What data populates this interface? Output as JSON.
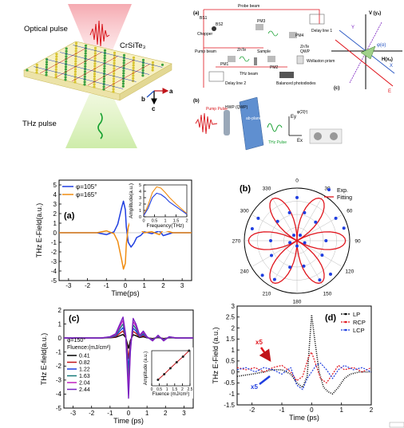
{
  "top_left": {
    "optical_label": "Optical pulse",
    "crystal_label": "CrSiTe₃",
    "thz_label": "THz pulse",
    "axis_b": "b",
    "axis_a": "a",
    "axis_c": "c"
  },
  "top_right": {
    "panel_a": "(a)",
    "panel_b": "(b)",
    "panel_c": "(c)",
    "bs1": "BS1",
    "bs2": "BS2",
    "probe_beam": "Probe beam",
    "delay_line_1": "Delay line 1",
    "delay_line_2": "Delay line 2",
    "chopper": "Chopper",
    "pump_beam": "Pump beam",
    "pm1": "PM1",
    "pm2": "PM2",
    "pm3": "PM3",
    "pm4": "PM4",
    "znte1": "ZnTe",
    "znte2": "ZnTe",
    "thz_beam": "THz beam",
    "sample": "Sample",
    "qwp": "QWP",
    "wollaston": "Wollaston prism",
    "balanced": "Balanced photodiodes",
    "sub_b_lens": "HWP (QWP)",
    "sub_b_plane": "ab-plane Surface",
    "sub_b_pump": "Pump Pulse",
    "sub_b_thz": "THz Pulse",
    "ey": "Ey",
    "ex": "Ex",
    "phi_label": "φ(2ξ²)",
    "c_v": "V (yₐ)",
    "c_h": "H(xₐ)",
    "c_y": "Y",
    "c_x": "X",
    "c_e": "E",
    "c_phi": "φ(α)"
  },
  "chart_data": [
    {
      "type": "line",
      "panel": "(a)",
      "ylabel": "THz E-Field(a.u.)",
      "xlabel": "Time(ps)",
      "xlim": [
        -3.5,
        3.5
      ],
      "ylim": [
        -5,
        5.5
      ],
      "xticks": [
        -3,
        -2,
        -1,
        0,
        1,
        2,
        3
      ],
      "yticks": [
        -5,
        -4,
        -3,
        -2,
        -1,
        0,
        1,
        2,
        3,
        4,
        5
      ],
      "series": [
        {
          "name": "φ=105°",
          "color": "#1f3ee0",
          "x": [
            -3.5,
            -1.5,
            -1.0,
            -0.6,
            -0.4,
            -0.2,
            -0.1,
            0.0,
            0.05,
            0.15,
            0.3,
            0.45,
            0.6,
            0.8,
            1.0,
            1.4,
            1.8,
            2.0,
            2.5,
            3.5
          ],
          "y": [
            0.0,
            0.0,
            -0.2,
            0.1,
            0.9,
            2.6,
            3.3,
            2.4,
            0.6,
            -1.0,
            -1.5,
            -1.1,
            -0.5,
            -0.3,
            0.1,
            -0.1,
            0.2,
            -0.3,
            0.0,
            0.0
          ]
        },
        {
          "name": "φ=165°",
          "color": "#f08c10",
          "x": [
            -3.5,
            -1.5,
            -1.0,
            -0.6,
            -0.4,
            -0.2,
            -0.1,
            0.0,
            0.05,
            0.15,
            0.3,
            0.45,
            0.6,
            0.8,
            1.0,
            1.4,
            1.8,
            2.0,
            2.5,
            3.5
          ],
          "y": [
            0.0,
            0.0,
            0.2,
            -0.1,
            -0.9,
            -2.8,
            -3.8,
            -3.2,
            -1.2,
            0.6,
            1.4,
            1.2,
            0.6,
            0.3,
            0.0,
            0.1,
            -0.2,
            0.3,
            0.0,
            0.0
          ]
        }
      ],
      "inset": {
        "ylabel": "Amplitude(a.u.)",
        "xlabel": "Frequency(THz)",
        "xlim": [
          0.0,
          2.0
        ],
        "ylim": [
          0,
          5
        ],
        "xticks": [
          0.0,
          0.5,
          1.0,
          1.5,
          2.0
        ],
        "yticks": [
          0,
          1,
          2,
          3,
          4,
          5
        ],
        "series": [
          {
            "color": "#f08c10",
            "x": [
              0.0,
              0.2,
              0.4,
              0.6,
              0.8,
              1.0,
              1.2,
              1.5,
              2.0
            ],
            "y": [
              0.2,
              1.8,
              3.8,
              4.7,
              4.5,
              3.8,
              3.0,
              2.0,
              0.5
            ]
          },
          {
            "color": "#1f3ee0",
            "x": [
              0.0,
              0.2,
              0.4,
              0.6,
              0.8,
              1.0,
              1.2,
              1.5,
              2.0
            ],
            "y": [
              0.2,
              1.3,
              3.0,
              3.7,
              3.5,
              3.0,
              2.3,
              1.6,
              0.4
            ]
          }
        ]
      }
    },
    {
      "type": "scatter",
      "subtype": "polar",
      "panel": "(b)",
      "angle_ticks": [
        0,
        30,
        60,
        90,
        120,
        150,
        180,
        210,
        240,
        270,
        300,
        330
      ],
      "legend": [
        "Exp.",
        "Fitting"
      ],
      "exp_color": "#1f3ee0",
      "fit_color": "#e0151d",
      "exp_angles": [
        0,
        15,
        30,
        45,
        60,
        75,
        90,
        105,
        120,
        135,
        150,
        165,
        180,
        195,
        210,
        225,
        240,
        255,
        270,
        285,
        300,
        315,
        330,
        345
      ],
      "exp_r": [
        0.82,
        0.55,
        0.12,
        0.5,
        0.85,
        0.92,
        0.55,
        0.15,
        0.55,
        0.9,
        0.86,
        0.5,
        0.1,
        0.52,
        0.85,
        0.93,
        0.56,
        0.14,
        0.5,
        0.88,
        0.85,
        0.52,
        0.12,
        0.55
      ]
    },
    {
      "type": "line",
      "panel": "(c)",
      "ylabel": "THz E-field(a.u.)",
      "xlabel": "Time (ps)",
      "xlim": [
        -3.5,
        3.5
      ],
      "ylim": [
        -5,
        2
      ],
      "xticks": [
        -3,
        -2,
        -1,
        0,
        1,
        2,
        3
      ],
      "yticks": [
        -5,
        -4,
        -3,
        -2,
        -1,
        0,
        1,
        2
      ],
      "phi_note": "φ=150°",
      "legend_title": "Fluence:(mJ/cm²)",
      "series": [
        {
          "name": "0.41",
          "color": "#000000",
          "scale": 0.17
        },
        {
          "name": "0.82",
          "color": "#c0141a",
          "scale": 0.34
        },
        {
          "name": "1.22",
          "color": "#1f3ee0",
          "scale": 0.5
        },
        {
          "name": "1.63",
          "color": "#167a7a",
          "scale": 0.67
        },
        {
          "name": "2.04",
          "color": "#c020c0",
          "scale": 0.84
        },
        {
          "name": "2.44",
          "color": "#7a20c0",
          "scale": 1.0
        }
      ],
      "base_x": [
        -3.5,
        -1.5,
        -1.0,
        -0.7,
        -0.5,
        -0.3,
        -0.15,
        0.0,
        0.1,
        0.25,
        0.4,
        0.6,
        0.8,
        1.0,
        1.3,
        1.6,
        1.9,
        2.2,
        2.6,
        3.5
      ],
      "base_y": [
        0.0,
        0.0,
        0.1,
        0.3,
        0.9,
        1.5,
        0.2,
        -4.3,
        -1.0,
        1.4,
        1.0,
        0.2,
        0.5,
        0.1,
        -0.2,
        0.2,
        -0.2,
        0.1,
        0.0,
        0.0
      ],
      "inset": {
        "ylabel": "Amplitude (a.u.)",
        "xlabel": "Fluence (mJ/cm²)",
        "xlim": [
          0.0,
          2.5
        ],
        "ylim": [
          0,
          1
        ],
        "xticks": [
          0.0,
          0.5,
          1.0,
          1.5,
          2.0,
          2.5
        ],
        "x": [
          0.41,
          0.82,
          1.22,
          1.63,
          2.04,
          2.44
        ],
        "y": [
          0.17,
          0.33,
          0.5,
          0.67,
          0.83,
          1.0
        ]
      }
    },
    {
      "type": "line",
      "panel": "(d)",
      "ylabel": "THz E-Field (a.u.)",
      "xlabel": "Time (ps)",
      "xlim": [
        -2.5,
        2
      ],
      "ylim": [
        -1.5,
        3.0
      ],
      "xticks": [
        -2,
        -1,
        0,
        1,
        2
      ],
      "yticks": [
        -1.5,
        -1.0,
        -0.5,
        0.0,
        0.5,
        1.0,
        1.5,
        2.0,
        2.5,
        3.0
      ],
      "annotation_1": "x5",
      "annotation_2": "x5",
      "series": [
        {
          "name": "LP",
          "color": "#000000"
        },
        {
          "name": "RCP",
          "color": "#e0151d"
        },
        {
          "name": "LCP",
          "color": "#1f3ee0"
        }
      ],
      "lp_x": [
        -2.5,
        -2.0,
        -1.6,
        -1.3,
        -1.0,
        -0.7,
        -0.5,
        -0.3,
        -0.15,
        0.0,
        0.1,
        0.25,
        0.4,
        0.55,
        0.7,
        0.9,
        1.1,
        1.3,
        1.6,
        2.0
      ],
      "lp_y": [
        -0.2,
        -0.1,
        0.0,
        0.1,
        0.1,
        -0.1,
        -0.5,
        -0.7,
        -0.2,
        2.6,
        1.5,
        0.0,
        -0.7,
        -0.9,
        -1.0,
        -0.7,
        -0.3,
        -0.1,
        0.0,
        0.0
      ],
      "rcp_x": [
        -2.5,
        -2.2,
        -1.9,
        -1.6,
        -1.3,
        -1.0,
        -0.7,
        -0.5,
        -0.3,
        -0.1,
        0.0,
        0.15,
        0.3,
        0.5,
        0.7,
        0.9,
        1.1,
        1.4,
        1.7,
        2.0
      ],
      "rcp_y": [
        0.2,
        0.1,
        0.2,
        0.0,
        0.2,
        0.3,
        0.0,
        -0.4,
        -0.2,
        0.7,
        0.9,
        0.3,
        -0.3,
        -0.5,
        -0.1,
        0.3,
        0.1,
        0.2,
        0.0,
        0.2
      ],
      "lcp_x": [
        -2.5,
        -2.2,
        -1.9,
        -1.6,
        -1.3,
        -1.0,
        -0.7,
        -0.5,
        -0.3,
        -0.15,
        0.0,
        0.15,
        0.3,
        0.5,
        0.7,
        0.9,
        1.1,
        1.4,
        1.7,
        2.0
      ],
      "lcp_y": [
        0.1,
        0.2,
        0.0,
        0.2,
        0.1,
        -0.1,
        0.2,
        -0.6,
        -0.8,
        -0.3,
        0.0,
        0.3,
        0.4,
        0.1,
        -0.3,
        0.1,
        0.3,
        0.1,
        0.2,
        0.0
      ]
    }
  ]
}
